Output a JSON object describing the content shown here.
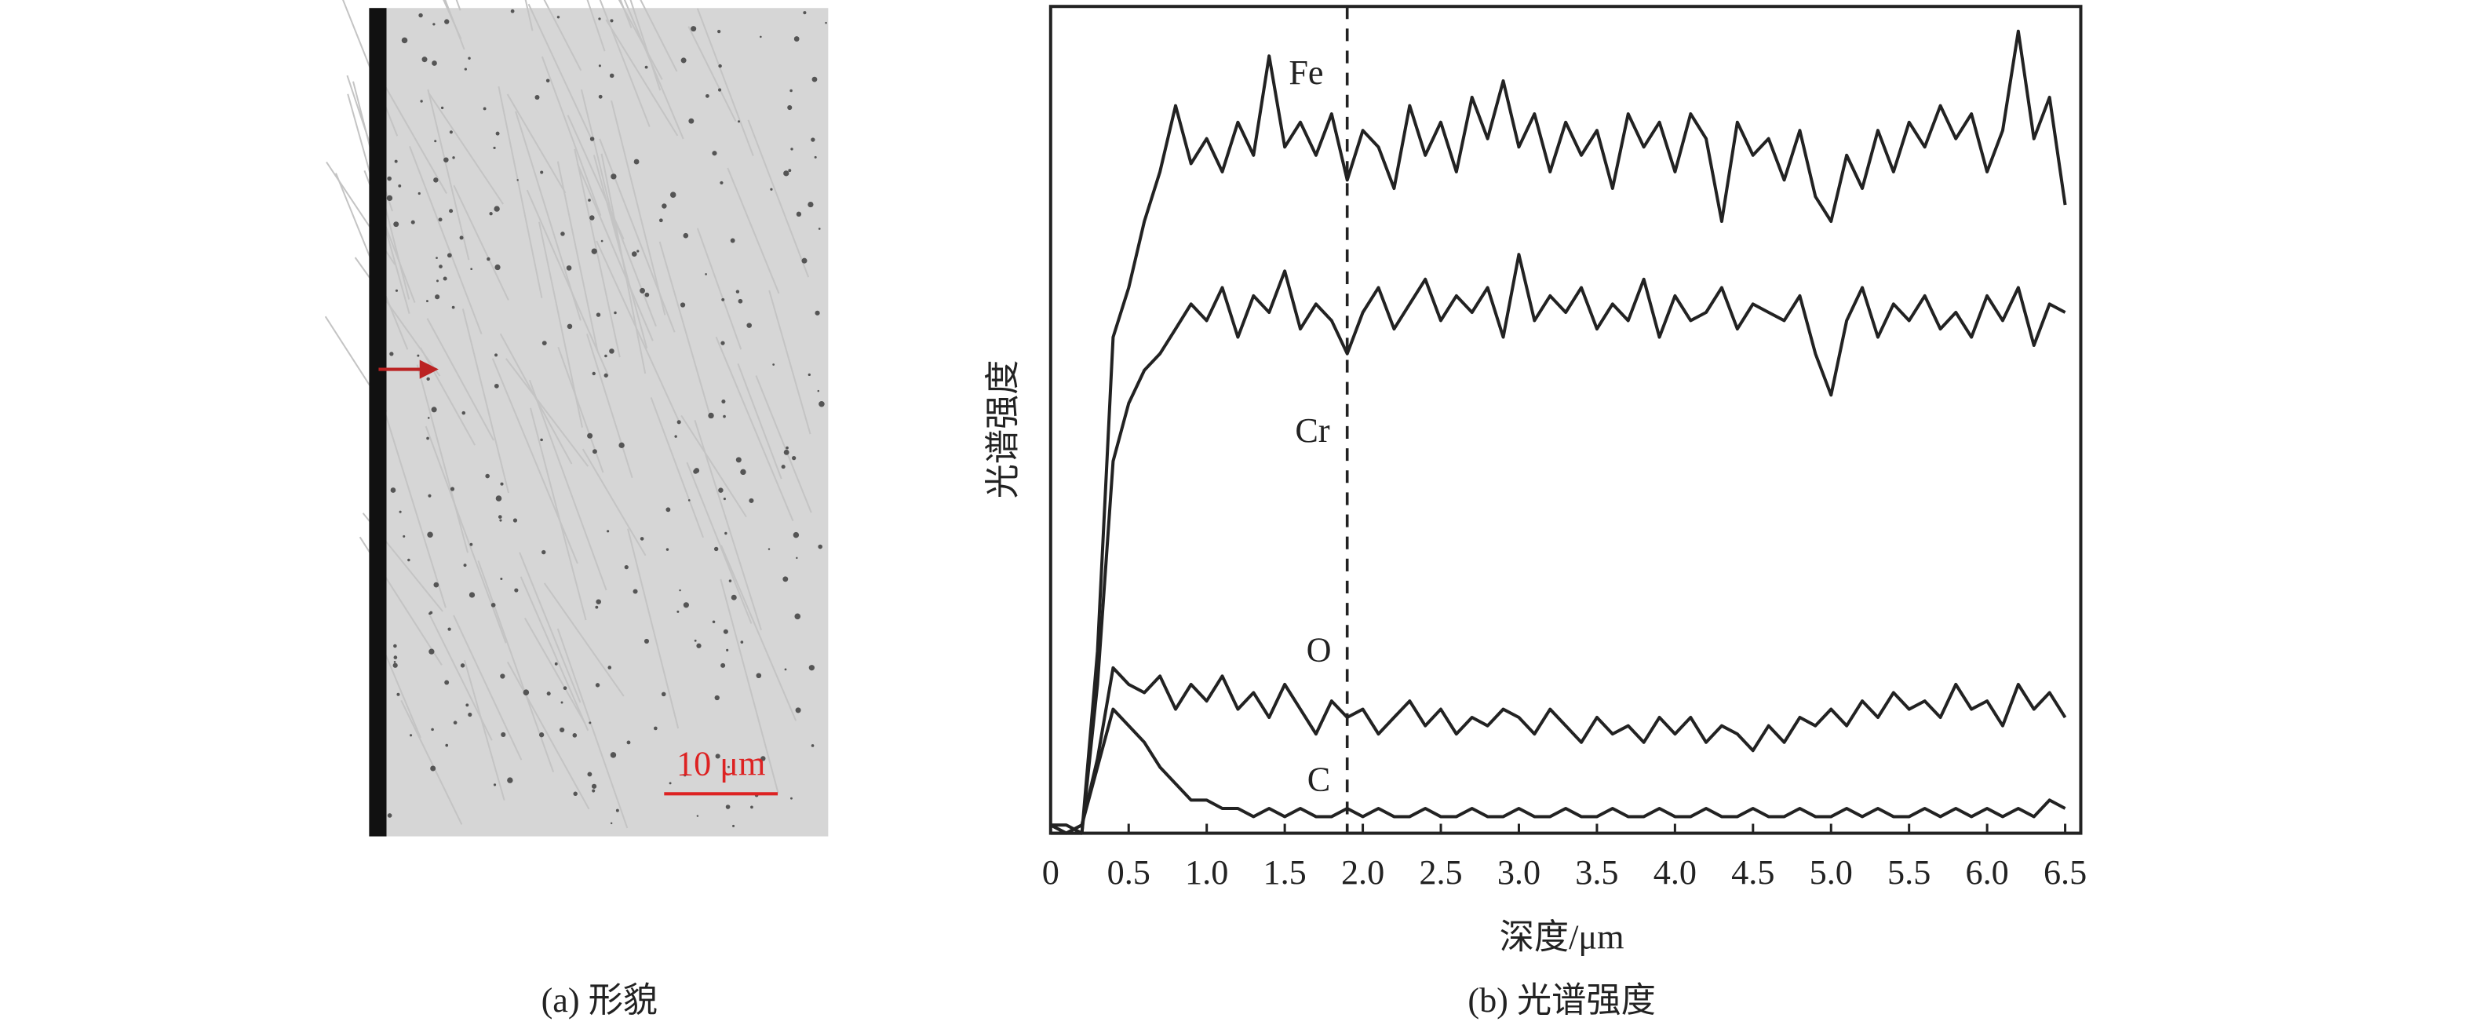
{
  "micrograph": {
    "caption": "(a) 形貌",
    "scale_bar": "10 μm"
  },
  "chart_data": {
    "type": "line",
    "caption": "(b) 光谱强度",
    "x_label": "深度/μm",
    "y_label": "光谱强度",
    "x": [
      0,
      0.1,
      0.2,
      0.3,
      0.4,
      0.5,
      0.6,
      0.7,
      0.8,
      0.9,
      1,
      1.1,
      1.2,
      1.3,
      1.4,
      1.5,
      1.6,
      1.7,
      1.8,
      1.9,
      2,
      2.1,
      2.2,
      2.3,
      2.4,
      2.5,
      2.6,
      2.7,
      2.8,
      2.9,
      3,
      3.1,
      3.2,
      3.3,
      3.4,
      3.5,
      3.6,
      3.7,
      3.8,
      3.9,
      4,
      4.1,
      4.2,
      4.3,
      4.4,
      4.5,
      4.6,
      4.7,
      4.8,
      4.9,
      5,
      5.1,
      5.2,
      5.3,
      5.4,
      5.5,
      5.6,
      5.7,
      5.8,
      5.9,
      6,
      6.1,
      6.2,
      6.3,
      6.4,
      6.5
    ],
    "series": [
      {
        "name": "Fe",
        "color": "#222222",
        "values": [
          1,
          1,
          0,
          22,
          60,
          66,
          74,
          80,
          88,
          81,
          84,
          80,
          86,
          82,
          94,
          83,
          86,
          82,
          87,
          79,
          85,
          83,
          78,
          88,
          82,
          86,
          80,
          89,
          84,
          91,
          83,
          87,
          80,
          86,
          82,
          85,
          78,
          87,
          83,
          86,
          80,
          87,
          84,
          74,
          86,
          82,
          84,
          79,
          85,
          77,
          74,
          82,
          78,
          85,
          80,
          86,
          83,
          88,
          84,
          87,
          80,
          85,
          97,
          84,
          89,
          76
        ]
      },
      {
        "name": "Cr",
        "color": "#222222",
        "values": [
          0,
          0,
          0,
          18,
          45,
          52,
          56,
          58,
          61,
          64,
          62,
          66,
          60,
          65,
          63,
          68,
          61,
          64,
          62,
          58,
          63,
          66,
          61,
          64,
          67,
          62,
          65,
          63,
          66,
          60,
          70,
          62,
          65,
          63,
          66,
          61,
          64,
          62,
          67,
          60,
          65,
          62,
          63,
          66,
          61,
          64,
          63,
          62,
          65,
          58,
          53,
          62,
          66,
          60,
          64,
          62,
          65,
          61,
          63,
          60,
          65,
          62,
          66,
          59,
          64,
          63
        ]
      },
      {
        "name": "O",
        "color": "#222222",
        "values": [
          1,
          0,
          1,
          9,
          20,
          18,
          17,
          19,
          15,
          18,
          16,
          19,
          15,
          17,
          14,
          18,
          15,
          12,
          16,
          14,
          15,
          12,
          14,
          16,
          13,
          15,
          12,
          14,
          13,
          15,
          14,
          12,
          15,
          13,
          11,
          14,
          12,
          13,
          11,
          14,
          12,
          14,
          11,
          13,
          12,
          10,
          13,
          11,
          14,
          13,
          15,
          13,
          16,
          14,
          17,
          15,
          16,
          14,
          18,
          15,
          16,
          13,
          18,
          15,
          17,
          14
        ]
      },
      {
        "name": "C",
        "color": "#222222",
        "values": [
          1,
          0,
          1,
          8,
          15,
          13,
          11,
          8,
          6,
          4,
          4,
          3,
          3,
          2,
          3,
          2,
          3,
          2,
          2,
          3,
          2,
          3,
          2,
          2,
          3,
          2,
          2,
          3,
          2,
          2,
          3,
          2,
          2,
          3,
          2,
          2,
          3,
          2,
          2,
          3,
          2,
          2,
          3,
          2,
          2,
          3,
          2,
          2,
          3,
          2,
          2,
          3,
          2,
          3,
          2,
          2,
          3,
          2,
          3,
          2,
          3,
          2,
          3,
          2,
          4,
          3
        ]
      }
    ],
    "xlim": [
      0,
      6.6
    ],
    "ylim": [
      0,
      100
    ],
    "xticks": [
      0,
      0.5,
      {
        "value": 1,
        "label": "1.0"
      },
      1.5,
      {
        "value": 2,
        "label": "2.0"
      },
      2.5,
      {
        "value": 3,
        "label": "3.0"
      },
      3.5,
      {
        "value": 4,
        "label": "4.0"
      },
      4.5,
      {
        "value": 5,
        "label": "5.0"
      },
      5.5,
      {
        "value": 6,
        "label": "6.0"
      },
      6.5
    ],
    "vlines": [
      1.9
    ]
  }
}
